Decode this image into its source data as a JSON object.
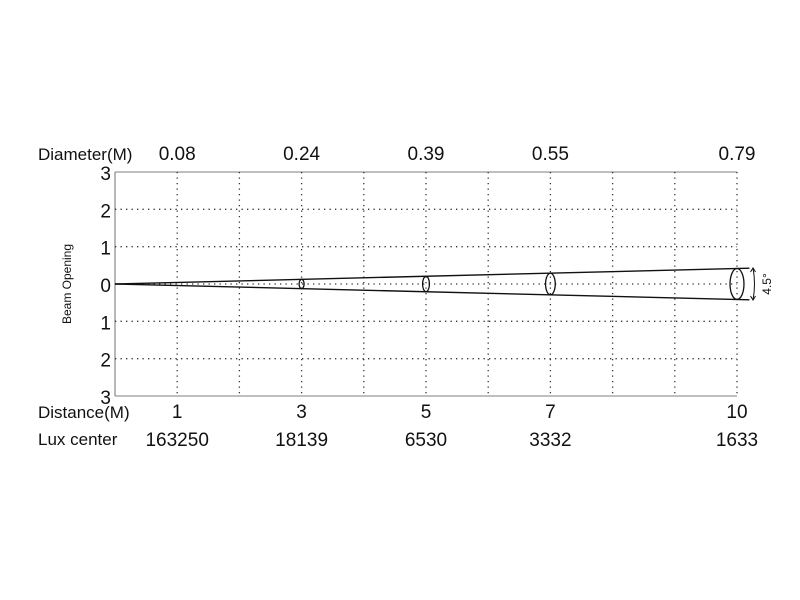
{
  "chart_data": {
    "type": "line",
    "title": "",
    "top_label": "Diameter(M)",
    "ylabel": "Beam Opening",
    "xlabel": "Distance(M)",
    "lux_label": "Lux center",
    "beam_angle": "4.5°",
    "xlim": [
      0,
      10
    ],
    "ylim": [
      -3,
      3
    ],
    "y_tick_labels": [
      "3",
      "2",
      "1",
      "0",
      "1",
      "2",
      "3"
    ],
    "y_ticks": [
      3,
      2,
      1,
      0,
      -1,
      -2,
      -3
    ],
    "grid": true,
    "x_grid_step": 1,
    "points": [
      {
        "distance": "1",
        "diameter": "0.08",
        "lux": "163250",
        "d": 1,
        "dia": 0.08
      },
      {
        "distance": "3",
        "diameter": "0.24",
        "lux": "18139",
        "d": 3,
        "dia": 0.24
      },
      {
        "distance": "5",
        "diameter": "0.39",
        "lux": "6530",
        "d": 5,
        "dia": 0.39
      },
      {
        "distance": "7",
        "diameter": "0.55",
        "lux": "3332",
        "d": 7,
        "dia": 0.55
      },
      {
        "distance": "10",
        "diameter": "0.79",
        "lux": "1633",
        "d": 10,
        "dia": 0.79
      }
    ]
  }
}
